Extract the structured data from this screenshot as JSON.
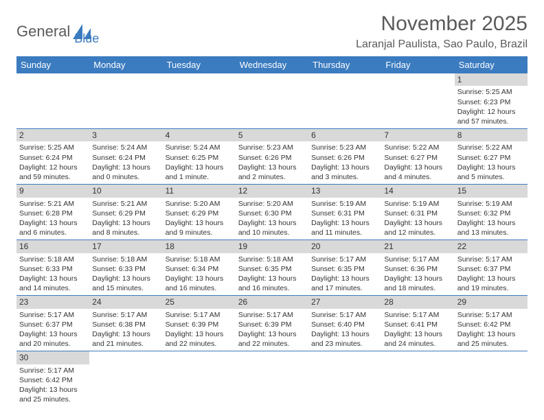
{
  "logo": {
    "text1": "General",
    "text2": "Blue"
  },
  "title": "November 2025",
  "location": "Laranjal Paulista, Sao Paulo, Brazil",
  "day_headers": [
    "Sunday",
    "Monday",
    "Tuesday",
    "Wednesday",
    "Thursday",
    "Friday",
    "Saturday"
  ],
  "colors": {
    "header_bg": "#3b7bbf",
    "header_text": "#ffffff",
    "daynum_bg": "#d9d9d9",
    "border": "#3b7bbf",
    "text": "#333333",
    "title_text": "#5a5a5a"
  },
  "weeks": [
    [
      null,
      null,
      null,
      null,
      null,
      null,
      {
        "n": "1",
        "sr": "Sunrise: 5:25 AM",
        "ss": "Sunset: 6:23 PM",
        "dl": "Daylight: 12 hours and 57 minutes."
      }
    ],
    [
      {
        "n": "2",
        "sr": "Sunrise: 5:25 AM",
        "ss": "Sunset: 6:24 PM",
        "dl": "Daylight: 12 hours and 59 minutes."
      },
      {
        "n": "3",
        "sr": "Sunrise: 5:24 AM",
        "ss": "Sunset: 6:24 PM",
        "dl": "Daylight: 13 hours and 0 minutes."
      },
      {
        "n": "4",
        "sr": "Sunrise: 5:24 AM",
        "ss": "Sunset: 6:25 PM",
        "dl": "Daylight: 13 hours and 1 minute."
      },
      {
        "n": "5",
        "sr": "Sunrise: 5:23 AM",
        "ss": "Sunset: 6:26 PM",
        "dl": "Daylight: 13 hours and 2 minutes."
      },
      {
        "n": "6",
        "sr": "Sunrise: 5:23 AM",
        "ss": "Sunset: 6:26 PM",
        "dl": "Daylight: 13 hours and 3 minutes."
      },
      {
        "n": "7",
        "sr": "Sunrise: 5:22 AM",
        "ss": "Sunset: 6:27 PM",
        "dl": "Daylight: 13 hours and 4 minutes."
      },
      {
        "n": "8",
        "sr": "Sunrise: 5:22 AM",
        "ss": "Sunset: 6:27 PM",
        "dl": "Daylight: 13 hours and 5 minutes."
      }
    ],
    [
      {
        "n": "9",
        "sr": "Sunrise: 5:21 AM",
        "ss": "Sunset: 6:28 PM",
        "dl": "Daylight: 13 hours and 6 minutes."
      },
      {
        "n": "10",
        "sr": "Sunrise: 5:21 AM",
        "ss": "Sunset: 6:29 PM",
        "dl": "Daylight: 13 hours and 8 minutes."
      },
      {
        "n": "11",
        "sr": "Sunrise: 5:20 AM",
        "ss": "Sunset: 6:29 PM",
        "dl": "Daylight: 13 hours and 9 minutes."
      },
      {
        "n": "12",
        "sr": "Sunrise: 5:20 AM",
        "ss": "Sunset: 6:30 PM",
        "dl": "Daylight: 13 hours and 10 minutes."
      },
      {
        "n": "13",
        "sr": "Sunrise: 5:19 AM",
        "ss": "Sunset: 6:31 PM",
        "dl": "Daylight: 13 hours and 11 minutes."
      },
      {
        "n": "14",
        "sr": "Sunrise: 5:19 AM",
        "ss": "Sunset: 6:31 PM",
        "dl": "Daylight: 13 hours and 12 minutes."
      },
      {
        "n": "15",
        "sr": "Sunrise: 5:19 AM",
        "ss": "Sunset: 6:32 PM",
        "dl": "Daylight: 13 hours and 13 minutes."
      }
    ],
    [
      {
        "n": "16",
        "sr": "Sunrise: 5:18 AM",
        "ss": "Sunset: 6:33 PM",
        "dl": "Daylight: 13 hours and 14 minutes."
      },
      {
        "n": "17",
        "sr": "Sunrise: 5:18 AM",
        "ss": "Sunset: 6:33 PM",
        "dl": "Daylight: 13 hours and 15 minutes."
      },
      {
        "n": "18",
        "sr": "Sunrise: 5:18 AM",
        "ss": "Sunset: 6:34 PM",
        "dl": "Daylight: 13 hours and 16 minutes."
      },
      {
        "n": "19",
        "sr": "Sunrise: 5:18 AM",
        "ss": "Sunset: 6:35 PM",
        "dl": "Daylight: 13 hours and 16 minutes."
      },
      {
        "n": "20",
        "sr": "Sunrise: 5:17 AM",
        "ss": "Sunset: 6:35 PM",
        "dl": "Daylight: 13 hours and 17 minutes."
      },
      {
        "n": "21",
        "sr": "Sunrise: 5:17 AM",
        "ss": "Sunset: 6:36 PM",
        "dl": "Daylight: 13 hours and 18 minutes."
      },
      {
        "n": "22",
        "sr": "Sunrise: 5:17 AM",
        "ss": "Sunset: 6:37 PM",
        "dl": "Daylight: 13 hours and 19 minutes."
      }
    ],
    [
      {
        "n": "23",
        "sr": "Sunrise: 5:17 AM",
        "ss": "Sunset: 6:37 PM",
        "dl": "Daylight: 13 hours and 20 minutes."
      },
      {
        "n": "24",
        "sr": "Sunrise: 5:17 AM",
        "ss": "Sunset: 6:38 PM",
        "dl": "Daylight: 13 hours and 21 minutes."
      },
      {
        "n": "25",
        "sr": "Sunrise: 5:17 AM",
        "ss": "Sunset: 6:39 PM",
        "dl": "Daylight: 13 hours and 22 minutes."
      },
      {
        "n": "26",
        "sr": "Sunrise: 5:17 AM",
        "ss": "Sunset: 6:39 PM",
        "dl": "Daylight: 13 hours and 22 minutes."
      },
      {
        "n": "27",
        "sr": "Sunrise: 5:17 AM",
        "ss": "Sunset: 6:40 PM",
        "dl": "Daylight: 13 hours and 23 minutes."
      },
      {
        "n": "28",
        "sr": "Sunrise: 5:17 AM",
        "ss": "Sunset: 6:41 PM",
        "dl": "Daylight: 13 hours and 24 minutes."
      },
      {
        "n": "29",
        "sr": "Sunrise: 5:17 AM",
        "ss": "Sunset: 6:42 PM",
        "dl": "Daylight: 13 hours and 25 minutes."
      }
    ],
    [
      {
        "n": "30",
        "sr": "Sunrise: 5:17 AM",
        "ss": "Sunset: 6:42 PM",
        "dl": "Daylight: 13 hours and 25 minutes."
      },
      null,
      null,
      null,
      null,
      null,
      null
    ]
  ]
}
